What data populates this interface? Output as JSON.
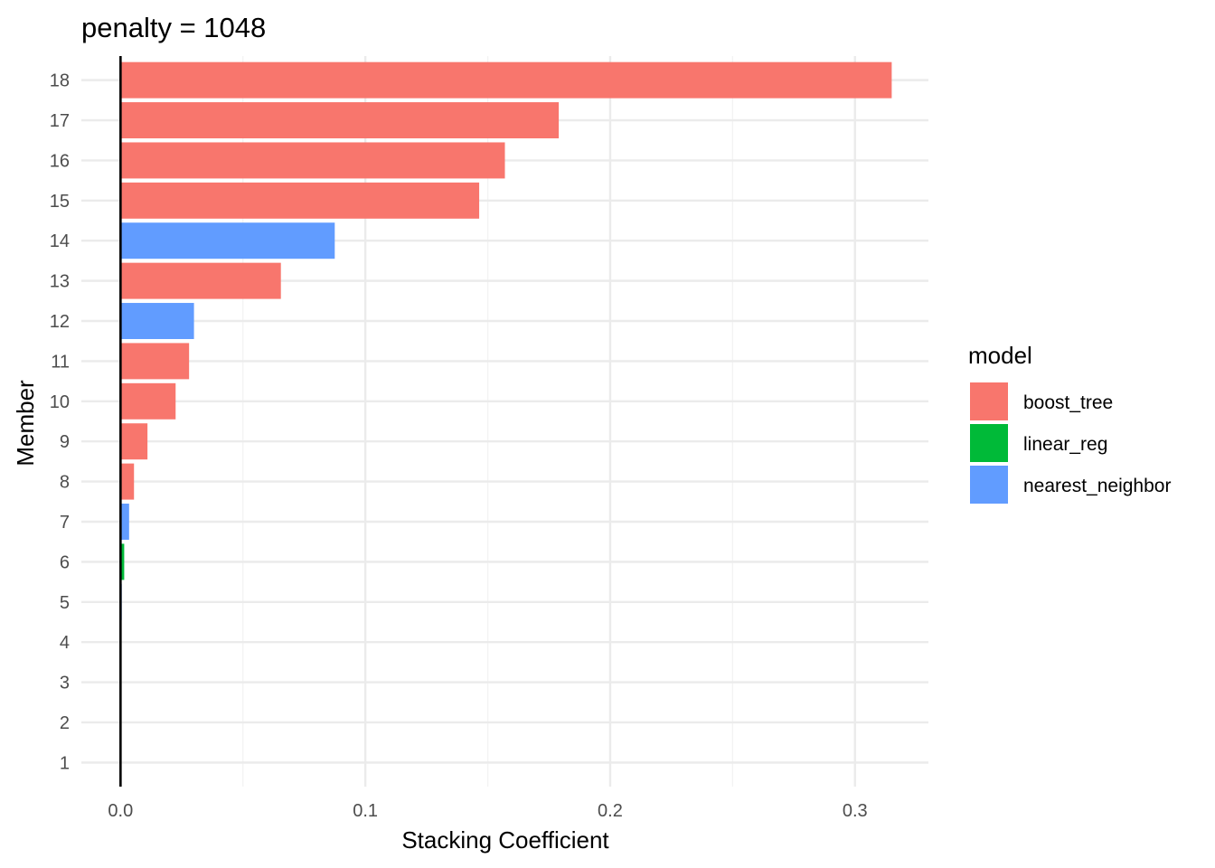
{
  "chart_data": {
    "type": "bar",
    "orientation": "horizontal",
    "title": "penalty = 1048",
    "xlabel": "Stacking Coefficient",
    "ylabel": "Member",
    "xlim": [
      -0.016,
      0.33
    ],
    "xticks": [
      0.0,
      0.1,
      0.2,
      0.3
    ],
    "xtick_labels": [
      "0.0",
      "0.1",
      "0.2",
      "0.3"
    ],
    "grid": true,
    "legend": {
      "title": "model",
      "position": "right",
      "entries": [
        {
          "name": "boost_tree",
          "color": "#F8766D"
        },
        {
          "name": "linear_reg",
          "color": "#00BA38"
        },
        {
          "name": "nearest_neighbor",
          "color": "#619CFF"
        }
      ]
    },
    "categories": [
      "1",
      "2",
      "3",
      "4",
      "5",
      "6",
      "7",
      "8",
      "9",
      "10",
      "11",
      "12",
      "13",
      "14",
      "15",
      "16",
      "17",
      "18"
    ],
    "values": [
      0,
      0,
      0,
      0,
      0.0005,
      0.0015,
      0.0035,
      0.0055,
      0.011,
      0.0225,
      0.028,
      0.03,
      0.0655,
      0.0875,
      0.1465,
      0.157,
      0.179,
      0.315
    ],
    "models": [
      "nearest_neighbor",
      "nearest_neighbor",
      "nearest_neighbor",
      "nearest_neighbor",
      "nearest_neighbor",
      "linear_reg",
      "nearest_neighbor",
      "boost_tree",
      "boost_tree",
      "boost_tree",
      "boost_tree",
      "nearest_neighbor",
      "boost_tree",
      "nearest_neighbor",
      "boost_tree",
      "boost_tree",
      "boost_tree",
      "boost_tree"
    ]
  }
}
